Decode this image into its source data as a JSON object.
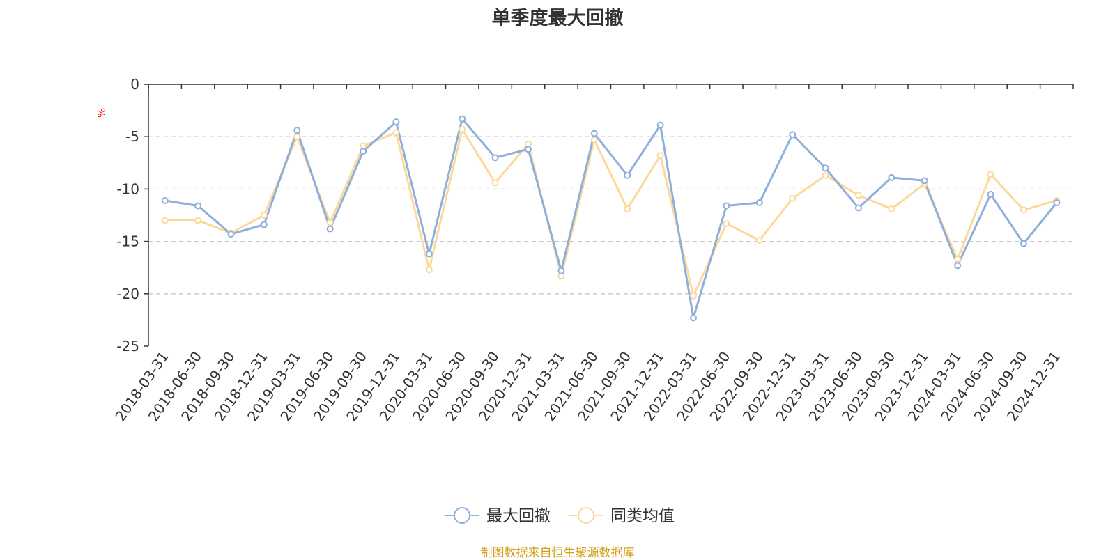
{
  "chart_data": {
    "type": "line",
    "title": "单季度最大回撤",
    "xlabel": "",
    "ylabel": "%",
    "ylim": [
      -25,
      0
    ],
    "yticks": [
      0,
      -5,
      -10,
      -15,
      -20,
      -25
    ],
    "ytick_labels": [
      "0",
      "-5",
      "-10",
      "-15",
      "-20",
      "-25"
    ],
    "grid": "horizontal-dashed",
    "legend_position": "bottom-center",
    "categories": [
      "2018-03-31",
      "2018-06-30",
      "2018-09-30",
      "2018-12-31",
      "2019-03-31",
      "2019-06-30",
      "2019-09-30",
      "2019-12-31",
      "2020-03-31",
      "2020-06-30",
      "2020-09-30",
      "2020-12-31",
      "2021-03-31",
      "2021-06-30",
      "2021-09-30",
      "2021-12-31",
      "2022-03-31",
      "2022-06-30",
      "2022-09-30",
      "2022-12-31",
      "2023-03-31",
      "2023-06-30",
      "2023-09-30",
      "2023-12-31",
      "2024-03-31",
      "2024-06-30",
      "2024-09-30",
      "2024-12-31"
    ],
    "series": [
      {
        "name": "最大回撤",
        "color": "#8eaedb",
        "values": [
          -11.1,
          -11.6,
          -14.3,
          -13.4,
          -4.4,
          -13.8,
          -6.4,
          -3.6,
          -16.2,
          -3.3,
          -7.0,
          -6.2,
          -17.8,
          -4.7,
          -8.7,
          -3.9,
          -22.3,
          -11.6,
          -11.3,
          -4.8,
          -8.0,
          -11.8,
          -8.9,
          -9.2,
          -17.3,
          -10.5,
          -15.2,
          -11.3
        ]
      },
      {
        "name": "同类均值",
        "color": "#fcd99a",
        "values": [
          -13.0,
          -13.0,
          -14.2,
          -12.5,
          -5.0,
          -13.2,
          -5.9,
          -4.6,
          -17.7,
          -4.3,
          -9.4,
          -5.7,
          -18.3,
          -5.3,
          -11.9,
          -6.8,
          -20.2,
          -13.3,
          -14.9,
          -10.9,
          -8.7,
          -10.6,
          -11.9,
          -9.5,
          -16.7,
          -8.6,
          -12.0,
          -11.1
        ]
      }
    ],
    "source": "制图数据来自恒生聚源数据库"
  }
}
